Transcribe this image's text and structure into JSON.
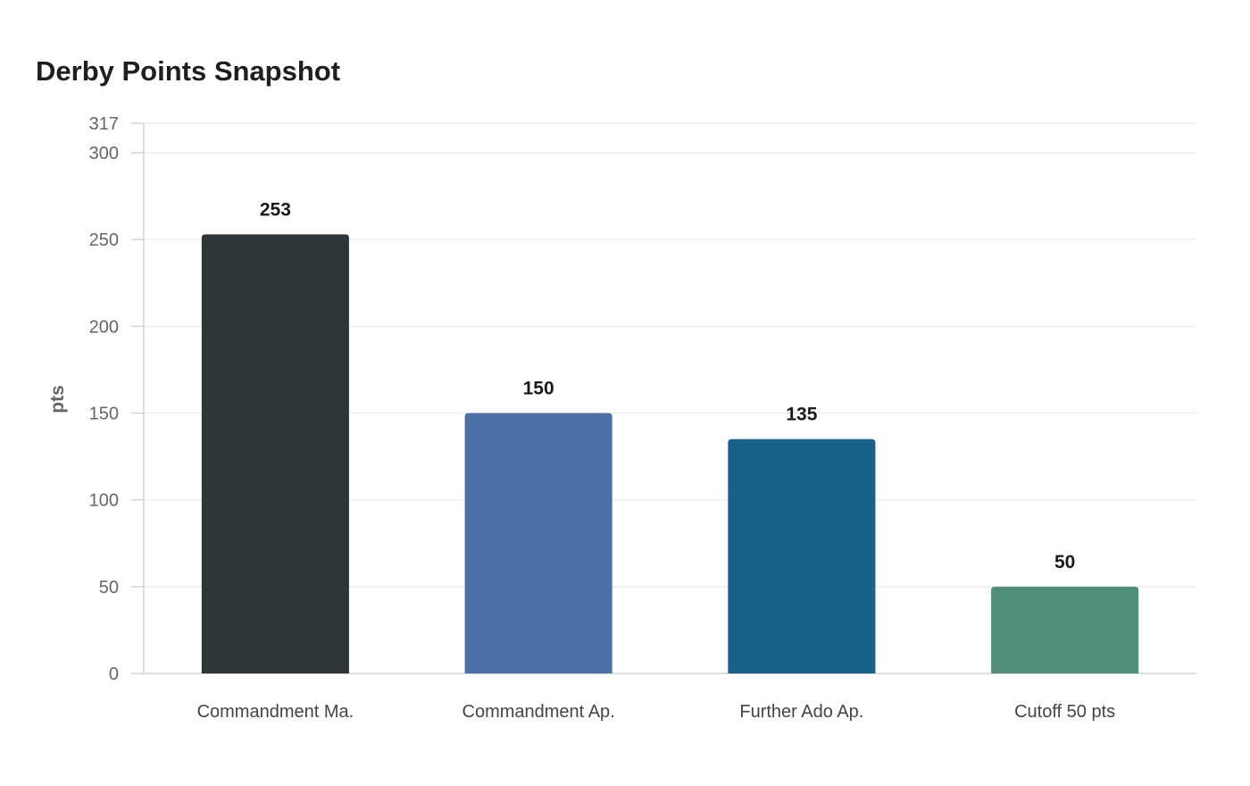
{
  "chart_data": {
    "type": "bar",
    "title": "Derby Points Snapshot",
    "xlabel": "",
    "ylabel": "pts",
    "ylim": [
      0,
      317
    ],
    "yticks": [
      0,
      50,
      100,
      150,
      200,
      250,
      300,
      317
    ],
    "grid": true,
    "categories": [
      "Commandment Ma.",
      "Commandment Ap.",
      "Further Ado Ap.",
      "Cutoff 50 pts"
    ],
    "values": [
      253,
      150,
      135,
      50
    ],
    "colors": [
      "#2e3538",
      "#4a70a5",
      "#186289",
      "#4f8e7b"
    ],
    "data_labels": [
      "253",
      "150",
      "135",
      "50"
    ]
  }
}
